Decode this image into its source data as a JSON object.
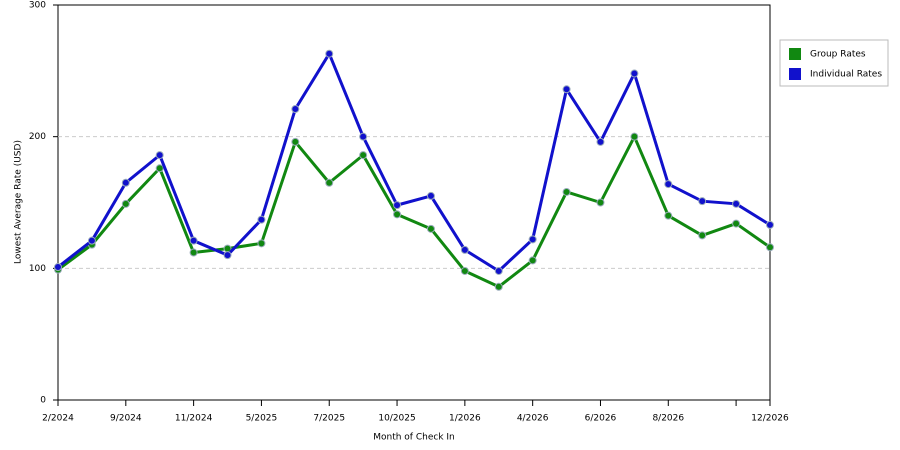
{
  "chart_data": {
    "type": "line",
    "x_label": "Month of Check In",
    "y_label": "Lowest Average Rate (USD)",
    "categories": [
      "2/2024",
      null,
      "9/2024",
      null,
      "11/2024",
      null,
      "5/2025",
      null,
      "7/2025",
      null,
      "10/2025",
      null,
      "1/2026",
      null,
      "4/2026",
      null,
      "6/2026",
      null,
      "8/2026",
      null,
      null,
      "12/2026"
    ],
    "series": [
      {
        "name": "Group Rates",
        "color": "#118811",
        "values": [
          99,
          118,
          149,
          176,
          112,
          115,
          119,
          196,
          165,
          186,
          141,
          130,
          98,
          86,
          106,
          158,
          150,
          200,
          140,
          125,
          134,
          116
        ]
      },
      {
        "name": "Individual Rates",
        "color": "#1111cc",
        "values": [
          101,
          121,
          165,
          186,
          121,
          110,
          137,
          221,
          263,
          200,
          148,
          155,
          114,
          98,
          122,
          236,
          196,
          248,
          164,
          151,
          149,
          133
        ]
      }
    ],
    "ylim": [
      0,
      300
    ],
    "yticks": [
      0,
      100,
      200,
      300
    ],
    "grid": true,
    "legend": "right"
  }
}
